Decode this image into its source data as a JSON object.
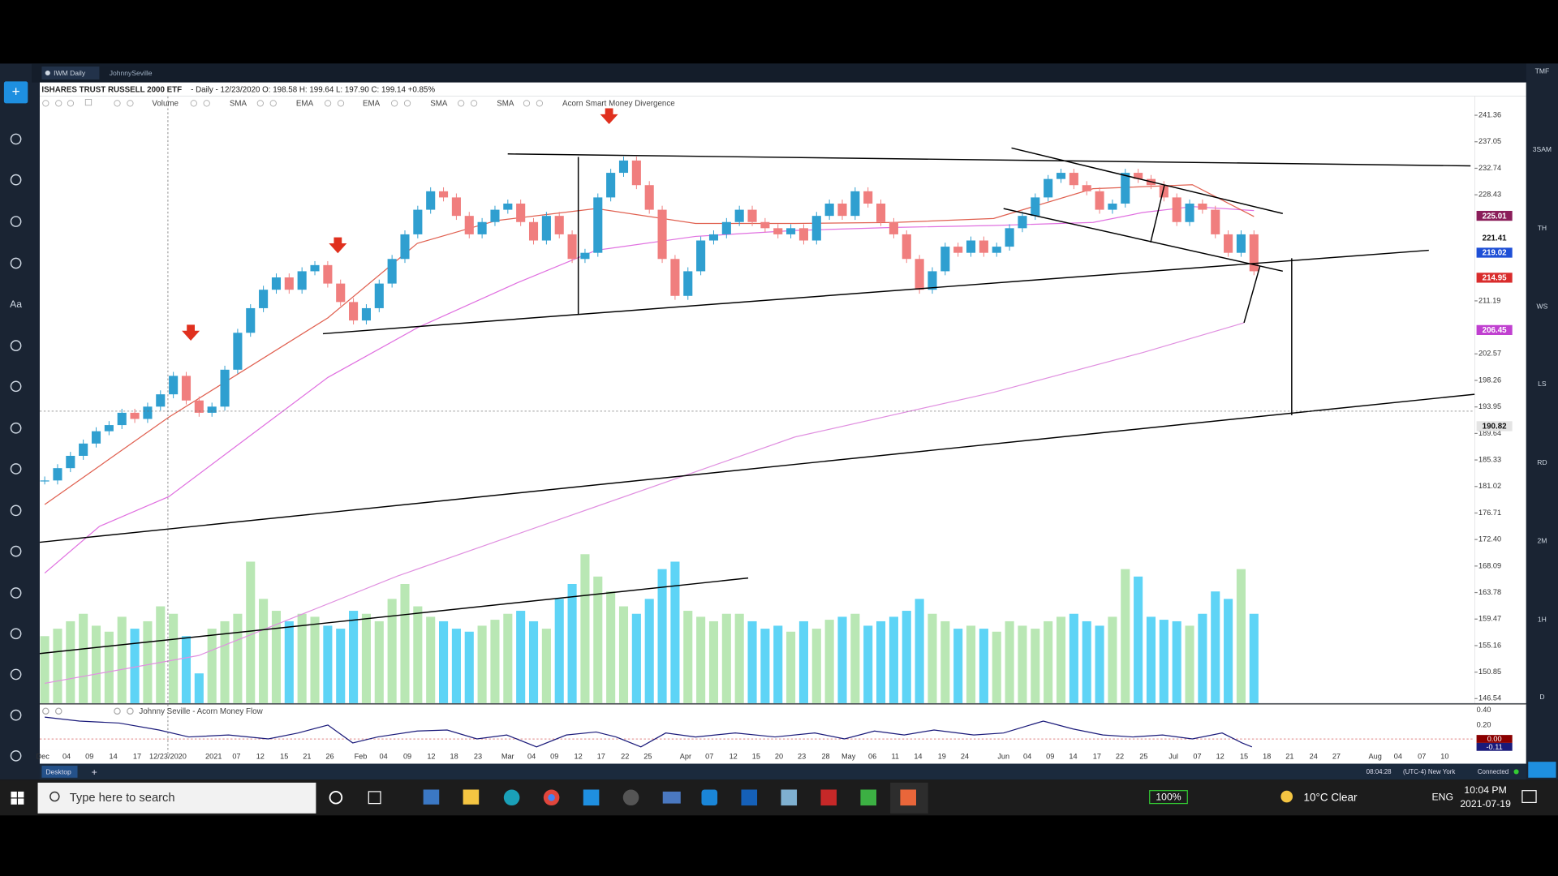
{
  "tabs": [
    "IWM Daily",
    "JohnnySeville"
  ],
  "header": {
    "symbol": "ISHARES TRUST RUSSELL 2000 ETF",
    "details": "- Daily - 12/23/2020 O: 198.58 H: 199.64 L: 197.90 C: 199.14 +0.85%"
  },
  "indicators": [
    "Volume",
    "SMA",
    "EMA",
    "EMA",
    "SMA",
    "SMA",
    "Acorn Smart Money Divergence"
  ],
  "left_toolbar": [
    "Aa"
  ],
  "sidebar": [
    "TMF",
    "3SAM",
    "TH",
    "WS",
    "LS",
    "RD",
    "2M",
    "1H",
    "D"
  ],
  "chart_data": {
    "type": "candlestick",
    "close": [
      182,
      184,
      186,
      188,
      190,
      191,
      193,
      192,
      194,
      196,
      199,
      195,
      193,
      194,
      200,
      206,
      210,
      213,
      215,
      213,
      216,
      217,
      214,
      211,
      208,
      210,
      214,
      218,
      222,
      226,
      229,
      228,
      225,
      222,
      224,
      226,
      227,
      224,
      221,
      225,
      222,
      218,
      219,
      228,
      232,
      234,
      230,
      226,
      218,
      212,
      216,
      221,
      222,
      224,
      226,
      224,
      223,
      222,
      223,
      221,
      225,
      227,
      225,
      229,
      227,
      224,
      222,
      218,
      213,
      216,
      220,
      219,
      221,
      219,
      220,
      223,
      225,
      228,
      231,
      232,
      230,
      229,
      226,
      227,
      232,
      231,
      230,
      228,
      224,
      227,
      226,
      222,
      219,
      222,
      216
    ],
    "volume": [
      45,
      50,
      55,
      60,
      52,
      48,
      58,
      50,
      55,
      65,
      60,
      45,
      20,
      50,
      55,
      60,
      95,
      70,
      62,
      55,
      60,
      58,
      52,
      50,
      62,
      60,
      55,
      70,
      80,
      65,
      58,
      55,
      50,
      48,
      52,
      56,
      60,
      62,
      55,
      50,
      70,
      80,
      100,
      85,
      75,
      65,
      60,
      70,
      90,
      95,
      62,
      58,
      55,
      60,
      60,
      55,
      50,
      52,
      48,
      55,
      50,
      56,
      58,
      60,
      52,
      55,
      58,
      62,
      70,
      60,
      55,
      50,
      52,
      50,
      48,
      55,
      52,
      50,
      55,
      58,
      60,
      55,
      52,
      58,
      90,
      85,
      58,
      56,
      55,
      52,
      60,
      75,
      70,
      90,
      60
    ],
    "up_color": "#2f9fd0",
    "down_color": "#f07e7e",
    "vol_up_color": "#b9e7b4",
    "vol_down_color": "#5ed4f6",
    "ylim": [
      145.8,
      244.43
    ],
    "yticks": [
      241.36,
      237.05,
      232.74,
      228.43,
      {
        "value": 211.19,
        "label": "211.19"
      },
      202.57,
      198.26,
      193.95,
      189.64,
      185.33,
      181.02,
      176.71,
      {
        "value": 172.4,
        "label": "172.40"
      },
      168.09,
      163.78,
      159.47,
      155.16,
      150.85,
      146.54
    ],
    "price_labels": [
      {
        "value": 225.01,
        "label": "225.01",
        "color": "#8b1e5a"
      },
      {
        "value": 221.41,
        "label": "221.41",
        "color": "#ffffff"
      },
      {
        "value": 219.02,
        "label": "219.02",
        "color": "#1e4fd6"
      },
      {
        "value": 214.95,
        "label": "214.95",
        "color": "#d92c2c"
      },
      {
        "value": 206.45,
        "label": "206.45",
        "color": "#c040d0"
      },
      {
        "value": 190.82,
        "label": "190.82",
        "color": "#e4e4e4"
      }
    ],
    "x_labels": [
      "Dec",
      "04",
      "09",
      "14",
      "17",
      "12/23/2020",
      "2021",
      "07",
      "12",
      "15",
      "21",
      "26",
      "Feb",
      "04",
      "09",
      "12",
      "18",
      "23",
      "Mar",
      "04",
      "09",
      "12",
      "17",
      "22",
      "25",
      "Apr",
      "07",
      "12",
      "15",
      "20",
      "23",
      "28",
      "May",
      "06",
      "11",
      "14",
      "19",
      "24",
      "Jun",
      "04",
      "09",
      "14",
      "17",
      "22",
      "25",
      "Jul",
      "07",
      "12",
      "15",
      "18",
      "21",
      "24",
      "27",
      "Aug",
      "04",
      "07",
      "10"
    ]
  },
  "sub_panel": {
    "title": "Johnny Seville - Acorn Money Flow",
    "ticks": [
      "0.40",
      "0.20"
    ],
    "value_labels": [
      "0.00",
      "-0.11"
    ]
  },
  "status_bar": {
    "left": "Desktop",
    "time": "08:04:28",
    "zone": "(UTC-4) New York",
    "status": "Connected"
  },
  "taskbar": {
    "search": "Type here to search",
    "battery": "100%",
    "weather": "10°C  Clear",
    "lang": "ENG",
    "time": "10:04 PM",
    "date": "2021-07-19"
  }
}
